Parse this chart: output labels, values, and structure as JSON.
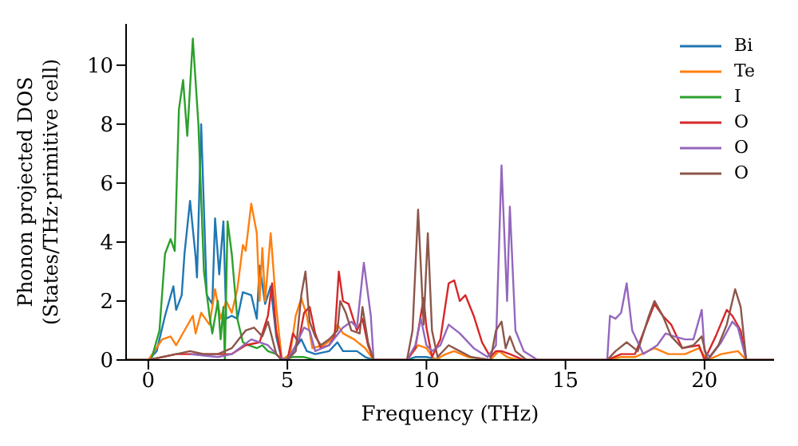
{
  "chart_data": {
    "type": "line",
    "xlabel": "Frequency (THz)",
    "ylabel": "Phonon projected DOS (States/THz·primitive cell)",
    "xlim": [
      -0.8,
      22.5
    ],
    "xticks": [
      0,
      5,
      10,
      15,
      20
    ],
    "ylim": [
      0,
      11.4
    ],
    "yticks": [
      0,
      2,
      4,
      6,
      8,
      10
    ],
    "grid": false,
    "legend": "top right",
    "marker": "none",
    "line_style": "solid",
    "series": [
      {
        "name": "Bi",
        "color": "#1f77b4",
        "x": [
          -0.8,
          0,
          0.3,
          0.6,
          0.9,
          1.0,
          1.2,
          1.3,
          1.5,
          1.7,
          1.75,
          1.9,
          2.1,
          2.3,
          2.4,
          2.55,
          2.7,
          2.8,
          3.0,
          3.2,
          3.4,
          3.7,
          3.9,
          4.0,
          4.2,
          4.4,
          4.6,
          4.8,
          5.0,
          5.2,
          5.5,
          5.7,
          6.0,
          6.5,
          6.8,
          7.0,
          7.5,
          7.8,
          8.1,
          9.3,
          9.6,
          10.0,
          10.5
        ],
        "values": [
          0,
          0,
          0.3,
          1.5,
          2.5,
          1.7,
          2.2,
          3.6,
          5.4,
          3.5,
          2.8,
          8.0,
          2.2,
          1.9,
          4.8,
          2.9,
          4.7,
          1.4,
          1.5,
          1.4,
          2.3,
          2.2,
          1.4,
          3.2,
          1.9,
          2.5,
          0.8,
          0,
          0,
          0.3,
          0.7,
          0.3,
          0.2,
          0.3,
          0.6,
          0.3,
          0.3,
          0.1,
          0,
          0,
          0.1,
          0.1,
          0
        ]
      },
      {
        "name": "Te",
        "color": "#ff7f0e",
        "x": [
          -0.8,
          0,
          0.5,
          0.8,
          1.0,
          1.3,
          1.6,
          1.7,
          1.9,
          2.2,
          2.4,
          2.6,
          2.8,
          3.0,
          3.2,
          3.4,
          3.5,
          3.7,
          3.9,
          4.0,
          4.1,
          4.2,
          4.4,
          4.6,
          4.8,
          5.1,
          5.3,
          5.5,
          5.7,
          5.9,
          6.3,
          6.6,
          6.8,
          7.0,
          7.4,
          7.8,
          8.1,
          9.3,
          9.7,
          10.0,
          10.3,
          10.7,
          11.0,
          11.5,
          12.3,
          12.6,
          12.9,
          13.3,
          16.5,
          17.0,
          17.5,
          18.2,
          18.7,
          19.3,
          19.8,
          20.1,
          20.6,
          21.2,
          21.5,
          22.5
        ],
        "values": [
          0,
          0,
          0.7,
          0.8,
          0.5,
          1.0,
          1.5,
          0.9,
          1.6,
          1.2,
          2.4,
          1.4,
          2.0,
          1.6,
          2.4,
          3.9,
          3.7,
          5.3,
          4.3,
          2.0,
          3.8,
          2.0,
          4.3,
          1.8,
          0,
          0.2,
          1.5,
          2.1,
          1.5,
          0.4,
          0.5,
          0.7,
          1.2,
          0.9,
          0.7,
          0.4,
          0,
          0,
          0.5,
          0.4,
          0,
          0.2,
          0.3,
          0.1,
          0,
          0.3,
          0.1,
          0,
          0,
          0.1,
          0.1,
          0.4,
          0.2,
          0.2,
          0.4,
          0,
          0.2,
          0.3,
          0,
          0
        ]
      },
      {
        "name": "I",
        "color": "#2ca02c",
        "x": [
          -0.8,
          0.1,
          0.4,
          0.6,
          0.8,
          0.95,
          1.1,
          1.25,
          1.4,
          1.6,
          1.8,
          2.0,
          2.2,
          2.3,
          2.5,
          2.6,
          2.7,
          2.75,
          2.85,
          3.0,
          3.2,
          3.4,
          3.6,
          3.9,
          4.1,
          4.3,
          4.6,
          4.8,
          5.2,
          5.6,
          6.0,
          22.5
        ],
        "values": [
          0,
          0,
          1.0,
          3.6,
          4.1,
          3.7,
          8.5,
          9.5,
          7.6,
          10.9,
          8.0,
          3.0,
          1.5,
          0.9,
          2.0,
          0.7,
          1.8,
          0,
          4.7,
          3.6,
          1.4,
          0.6,
          0.5,
          0.4,
          0.5,
          0.3,
          0.2,
          0,
          0.1,
          0.1,
          0,
          0
        ]
      },
      {
        "name": "O",
        "color": "#d62728",
        "x": [
          -0.8,
          0,
          1.0,
          1.5,
          2.5,
          3.0,
          3.5,
          4.0,
          4.3,
          4.45,
          4.6,
          4.8,
          5.0,
          5.2,
          5.4,
          5.6,
          5.8,
          6.0,
          6.2,
          6.5,
          6.7,
          6.85,
          7.0,
          7.2,
          7.5,
          7.7,
          7.9,
          8.1,
          9.3,
          9.6,
          9.9,
          10.0,
          10.2,
          10.5,
          10.8,
          11.0,
          11.2,
          11.4,
          11.7,
          12.0,
          12.3,
          12.5,
          12.7,
          13.0,
          13.5,
          16.5,
          17.0,
          17.5,
          18.2,
          18.5,
          18.8,
          19.2,
          19.8,
          20.0,
          20.4,
          20.8,
          21.0,
          21.3,
          21.5,
          22.5
        ],
        "values": [
          0,
          0,
          0.2,
          0.2,
          0.2,
          0.2,
          0.5,
          0.6,
          1.5,
          2.6,
          1.0,
          0,
          0,
          0.9,
          0.6,
          1.6,
          1.8,
          0.9,
          0.4,
          0.5,
          0.8,
          3.0,
          2.0,
          1.9,
          1.0,
          1.4,
          0.5,
          0,
          0,
          0.4,
          2.1,
          1.1,
          0.1,
          0.7,
          2.6,
          2.7,
          2.0,
          2.2,
          1.5,
          0.6,
          0.1,
          0.3,
          0.3,
          0.2,
          0,
          0,
          0.2,
          0.2,
          1.9,
          1.5,
          1.2,
          0.4,
          0.5,
          0,
          0.8,
          1.7,
          1.5,
          1.0,
          0,
          0
        ]
      },
      {
        "name": "O",
        "color": "#9467bd",
        "x": [
          1.5,
          2.5,
          3.0,
          3.7,
          4.3,
          4.7,
          5.0,
          5.3,
          5.6,
          5.8,
          6.0,
          6.5,
          7.0,
          7.3,
          7.5,
          7.75,
          8.0,
          8.1,
          9.3,
          9.6,
          9.8,
          10.0,
          10.2,
          10.5,
          10.8,
          11.2,
          11.7,
          12.2,
          12.5,
          12.7,
          12.9,
          13.0,
          13.2,
          13.5,
          14.0,
          16.5,
          16.6,
          16.8,
          17.0,
          17.2,
          17.4,
          17.8,
          18.3,
          18.6,
          18.9,
          19.3,
          19.6,
          19.9,
          20.0,
          20.2,
          20.6,
          21.0,
          21.2,
          21.5,
          22.5
        ],
        "values": [
          0.2,
          0.1,
          0.2,
          0.7,
          0.5,
          0.1,
          0,
          0.5,
          1.1,
          1.0,
          0.3,
          0.5,
          1.1,
          1.3,
          1.1,
          3.3,
          1.5,
          0,
          0,
          0.5,
          1.4,
          0.5,
          0.3,
          0.5,
          1.2,
          0.9,
          0.4,
          0.1,
          0.5,
          6.6,
          2.0,
          5.2,
          1.0,
          0.3,
          0,
          0,
          1.5,
          1.4,
          1.6,
          2.6,
          1.0,
          0.2,
          0.5,
          0.9,
          0.8,
          0.7,
          0.7,
          1.7,
          0.3,
          0.1,
          0.6,
          1.3,
          1.1,
          0,
          0
        ]
      },
      {
        "name": "O",
        "color": "#8c564b",
        "x": [
          -0.8,
          0,
          1.0,
          1.5,
          2.0,
          2.5,
          3.0,
          3.5,
          3.8,
          4.1,
          4.3,
          4.6,
          4.8,
          5.0,
          5.3,
          5.5,
          5.65,
          5.8,
          6.0,
          6.2,
          6.5,
          6.8,
          6.9,
          7.1,
          7.3,
          7.6,
          7.7,
          7.9,
          8.1,
          9.3,
          9.5,
          9.7,
          9.9,
          10.05,
          10.2,
          10.4,
          10.8,
          11.2,
          11.6,
          12.3,
          12.5,
          12.7,
          12.85,
          13.0,
          13.2,
          13.6,
          16.5,
          16.8,
          17.2,
          17.6,
          18.0,
          18.2,
          18.5,
          18.8,
          19.2,
          19.6,
          19.9,
          20.1,
          20.5,
          20.8,
          21.1,
          21.3,
          21.5,
          22.5
        ],
        "values": [
          0,
          0,
          0.2,
          0.3,
          0.2,
          0.2,
          0.4,
          1.0,
          1.1,
          0.8,
          1.3,
          0.2,
          0,
          0,
          0.3,
          2.2,
          3.0,
          1.3,
          0.8,
          0.5,
          0.7,
          1.0,
          2.0,
          1.6,
          1.0,
          0.9,
          1.8,
          0.6,
          0,
          0,
          1.0,
          5.1,
          1.2,
          4.3,
          1.0,
          0.1,
          0.5,
          0.3,
          0.1,
          0,
          1.0,
          1.3,
          0.4,
          0.8,
          0.3,
          0,
          0,
          0.3,
          0.6,
          0.3,
          1.5,
          2.0,
          1.5,
          0.8,
          0.4,
          0.5,
          0.8,
          0,
          0.5,
          1.2,
          2.4,
          1.8,
          0,
          0
        ]
      }
    ]
  }
}
